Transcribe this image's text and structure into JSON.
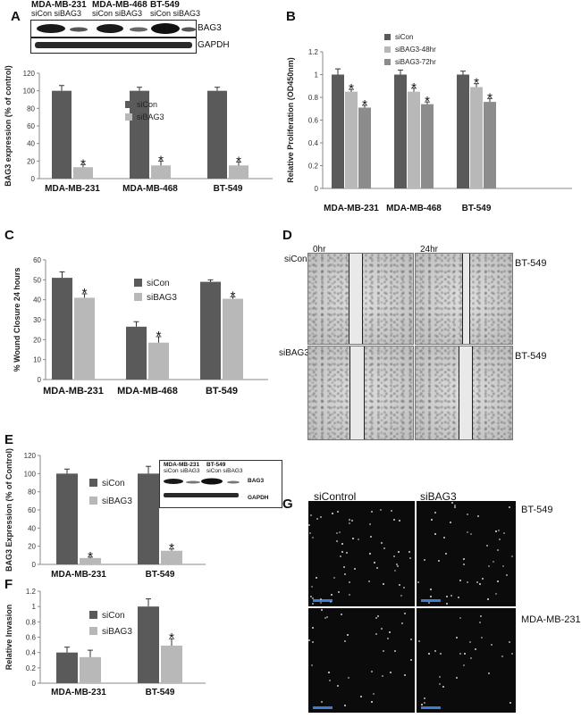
{
  "panels": {
    "A": "A",
    "B": "B",
    "C": "C",
    "D": "D",
    "E": "E",
    "F": "F",
    "G": "G"
  },
  "blot_a": {
    "cell_lines": [
      "MDA-MB-231",
      "MDA-MB-468",
      "BT-549"
    ],
    "lane_labels": [
      "siCon siBAG3",
      "siCon siBAG3",
      "siCon siBAG3"
    ],
    "bands": [
      "BAG3",
      "GAPDH"
    ]
  },
  "blot_e": {
    "cell_lines": [
      "MDA-MB-231",
      "BT-549"
    ],
    "lane_labels": [
      "siCon siBAG3",
      "siCon siBAG3"
    ],
    "bands": [
      "BAG3",
      "GAPDH"
    ]
  },
  "panel_d": {
    "time_labels": [
      "0hr",
      "24hr"
    ],
    "row_labels": [
      "siCon",
      "siBAG3"
    ],
    "side_labels": [
      "BT-549",
      "BT-549"
    ]
  },
  "panel_g": {
    "col_labels": [
      "siControl",
      "siBAG3"
    ],
    "side_labels": [
      "BT-549",
      "MDA-MB-231"
    ]
  },
  "colors": {
    "dark": "#5a5a5a",
    "light": "#b8b8b8",
    "medium": "#8c8c8c",
    "axis": "#888888"
  },
  "chart_data": [
    {
      "id": "A",
      "type": "bar",
      "categories": [
        "MDA-MB-231",
        "MDA-MB-468",
        "BT-549"
      ],
      "series": [
        {
          "name": "siCon",
          "values": [
            100,
            100,
            100
          ],
          "errors": [
            6,
            4,
            4
          ]
        },
        {
          "name": "siBAG3",
          "values": [
            13,
            15,
            15
          ],
          "errors": [
            3,
            5,
            4
          ]
        }
      ],
      "significance": [
        [
          false,
          false,
          false
        ],
        [
          true,
          true,
          true
        ]
      ],
      "ylabel": "BAG3 expression (% of control)",
      "ylim": [
        0,
        120
      ],
      "yticks": [
        0,
        20,
        40,
        60,
        80,
        100,
        120
      ],
      "legend": "right"
    },
    {
      "id": "B",
      "type": "bar",
      "categories": [
        "MDA-MB-231",
        "MDA-MB-468",
        "BT-549"
      ],
      "series": [
        {
          "name": "siCon",
          "values": [
            1.0,
            1.0,
            1.0
          ],
          "errors": [
            0.05,
            0.04,
            0.03
          ]
        },
        {
          "name": "siBAG3-48hr",
          "values": [
            0.85,
            0.85,
            0.89
          ],
          "errors": [
            0.02,
            0.03,
            0.03
          ]
        },
        {
          "name": "siBAG3-72hr",
          "values": [
            0.71,
            0.74,
            0.76
          ],
          "errors": [
            0.02,
            0.02,
            0.03
          ]
        }
      ],
      "significance": [
        [
          false,
          false,
          false
        ],
        [
          true,
          true,
          true
        ],
        [
          true,
          true,
          true
        ]
      ],
      "ylabel": "Relative Proliferation (OD450nm)",
      "ylim": [
        0,
        1.2
      ],
      "yticks": [
        0,
        0.2,
        0.4,
        0.6,
        0.8,
        1,
        1.2
      ],
      "legend": "top"
    },
    {
      "id": "C",
      "type": "bar",
      "categories": [
        "MDA-MB-231",
        "MDA-MB-468",
        "BT-549"
      ],
      "series": [
        {
          "name": "siCon",
          "values": [
            51,
            26.5,
            49
          ],
          "errors": [
            3,
            2.5,
            1
          ]
        },
        {
          "name": "siBAG3",
          "values": [
            41,
            18.5,
            40.5
          ],
          "errors": [
            2,
            3,
            1
          ]
        }
      ],
      "significance": [
        [
          false,
          false,
          false
        ],
        [
          true,
          true,
          true
        ]
      ],
      "ylabel": "% Wound Closure 24 hours",
      "ylim": [
        0,
        60
      ],
      "yticks": [
        0,
        10,
        20,
        30,
        40,
        50,
        60
      ],
      "legend": "right"
    },
    {
      "id": "E",
      "type": "bar",
      "categories": [
        "MDA-MB-231",
        "BT-549"
      ],
      "series": [
        {
          "name": "siCon",
          "values": [
            100,
            100
          ],
          "errors": [
            5,
            8
          ]
        },
        {
          "name": "siBAG3",
          "values": [
            7,
            15
          ],
          "errors": [
            1,
            2
          ]
        }
      ],
      "significance": [
        [
          false,
          false
        ],
        [
          true,
          true
        ]
      ],
      "ylabel": "BAG3 Expression (% of Control)",
      "ylim": [
        0,
        120
      ],
      "yticks": [
        0,
        20,
        40,
        60,
        80,
        100,
        120
      ],
      "legend": "left"
    },
    {
      "id": "F",
      "type": "bar",
      "categories": [
        "MDA-MB-231",
        "BT-549"
      ],
      "series": [
        {
          "name": "siCon",
          "values": [
            0.4,
            1.0
          ],
          "errors": [
            0.07,
            0.1
          ]
        },
        {
          "name": "siBAG3",
          "values": [
            0.34,
            0.49
          ],
          "errors": [
            0.09,
            0.09
          ]
        }
      ],
      "significance": [
        [
          false,
          false
        ],
        [
          false,
          true
        ]
      ],
      "ylabel": "Relative Invasion",
      "ylim": [
        0,
        1.2
      ],
      "yticks": [
        0,
        0.2,
        0.4,
        0.6,
        0.8,
        1,
        1.2
      ],
      "legend": "left"
    }
  ]
}
